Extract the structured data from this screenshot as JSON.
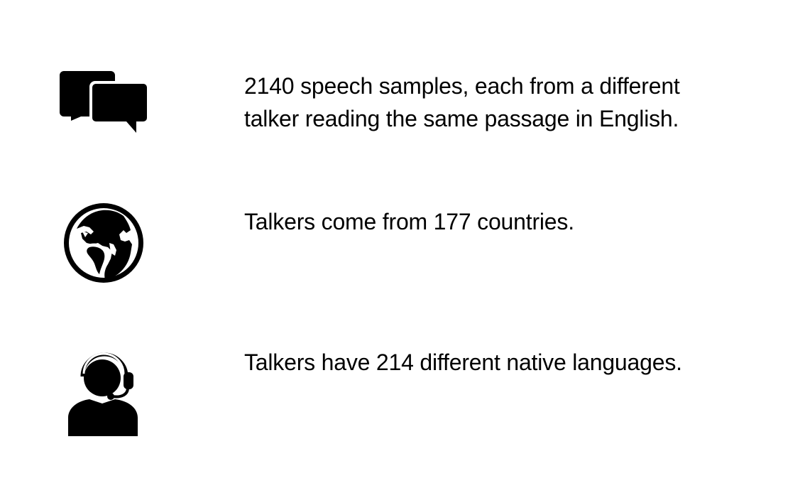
{
  "items": [
    {
      "icon": "speech-bubbles-icon",
      "lines": [
        "2140 speech samples, each from a different",
        "talker reading the same passage in English."
      ]
    },
    {
      "icon": "globe-icon",
      "lines": [
        "Talkers come from 177 countries."
      ]
    },
    {
      "icon": "headset-person-icon",
      "lines": [
        "Talkers have 214 different native languages."
      ]
    }
  ],
  "colors": {
    "background": "#ffffff",
    "foreground": "#000000"
  }
}
